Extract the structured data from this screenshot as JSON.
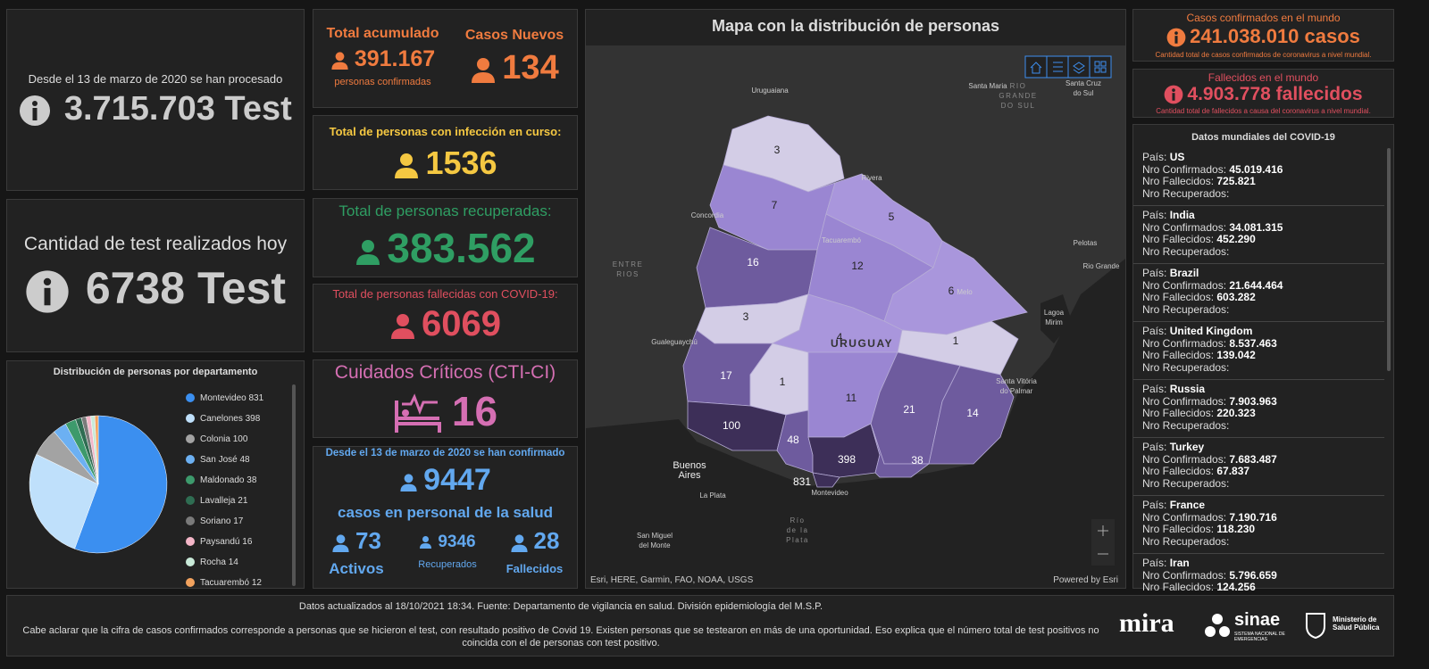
{
  "tests_total": {
    "label": "Desde el 13 de marzo de 2020 se han procesado",
    "value": "3.715.703 Test"
  },
  "tests_today": {
    "label": "Cantidad de test realizados hoy",
    "value": "6738 Test"
  },
  "department_chart": {
    "title": "Distribución de personas por departamento",
    "categories": [
      "Montevideo",
      "Canelones",
      "Colonia",
      "San José",
      "Maldonado",
      "Lavalleja",
      "Soriano",
      "Paysandú",
      "Rocha",
      "Tacuarembó"
    ],
    "values": [
      831,
      398,
      100,
      48,
      38,
      21,
      17,
      16,
      14,
      12
    ],
    "colors": [
      "#3b8ff0",
      "#bfe0fb",
      "#a3a3a3",
      "#6cb0f2",
      "#3d9a6c",
      "#2f6d52",
      "#7a7a7a",
      "#f4b6c8",
      "#c9ead9",
      "#f2a25e"
    ]
  },
  "total_cumulative": {
    "label": "Total acumulado",
    "value": "391.167",
    "sublabel": "personas confirmadas"
  },
  "new_cases": {
    "label": "Casos Nuevos",
    "value": "134"
  },
  "active": {
    "label": "Total de personas con infección en curso:",
    "value": "1536"
  },
  "recovered": {
    "label": "Total de personas recuperadas:",
    "value": "383.562"
  },
  "deceased": {
    "label": "Total de personas fallecidas con COVID-19:",
    "value": "6069"
  },
  "critical": {
    "label": "Cuidados Críticos (CTI-CI)",
    "value": "16"
  },
  "health_staff": {
    "label": "Desde el 13 de marzo de 2020 se han confirmado",
    "value": "9447",
    "sublabel": "casos en personal de la salud",
    "active": {
      "value": "73",
      "label": "Activos"
    },
    "recovered": {
      "value": "9346",
      "label": "Recuperados"
    },
    "deceased": {
      "value": "28",
      "label": "Fallecidos"
    }
  },
  "map": {
    "title": "Mapa con la distribución de personas",
    "departments": [
      3,
      7,
      5,
      16,
      12,
      6,
      3,
      4,
      1,
      17,
      1,
      11,
      21,
      14,
      100,
      48,
      398,
      38,
      831
    ],
    "places": [
      [
        "Uruguaiana"
      ],
      [
        "Santa Maria"
      ],
      [
        "Santa Cruz",
        "do Sul"
      ],
      [
        "RIO",
        "GRANDE",
        "DO SUL"
      ],
      [
        "Concordia"
      ],
      [
        "Rivera"
      ],
      [
        "Tacuarembó"
      ],
      [
        "ENTRE",
        "RIOS"
      ],
      [
        "Melo"
      ],
      [
        "Pelotas"
      ],
      [
        "Rio Grande"
      ],
      [
        "Lagoa",
        "Mirim"
      ],
      [
        "URUGUAY"
      ],
      [
        "Gualeguaychú"
      ],
      [
        "Santa Vitória",
        "do Palmar"
      ],
      [
        "Buenos",
        "Aires"
      ],
      [
        "La Plata"
      ],
      [
        "Montevideo"
      ],
      [
        "San Miguel",
        "del Monte"
      ],
      [
        "Río",
        "de la",
        "Plata"
      ]
    ],
    "attribution": "Esri, HERE, Garmin, FAO, NOAA, USGS",
    "powered_by": "Powered by Esri"
  },
  "world_cases": {
    "label": "Casos confirmados en el mundo",
    "value": "241.038.010 casos",
    "note": "Cantidad total de casos confirmados de coronavirus a nivel mundial."
  },
  "world_deaths": {
    "label": "Fallecidos en el mundo",
    "value": "4.903.778 fallecidos",
    "note": "Cantidad total de fallecidos a causa del coronavirus a nivel mundial."
  },
  "world_list": {
    "title": "Datos mundiales del COVID-19",
    "field_labels": {
      "country": "País:",
      "confirmed": "Nro Confirmados:",
      "deaths": "Nro Fallecidos:",
      "recovered": "Nro Recuperados:"
    },
    "countries": [
      {
        "name": "US",
        "confirmed": "45.019.416",
        "deaths": "725.821"
      },
      {
        "name": "India",
        "confirmed": "34.081.315",
        "deaths": "452.290"
      },
      {
        "name": "Brazil",
        "confirmed": "21.644.464",
        "deaths": "603.282"
      },
      {
        "name": "United Kingdom",
        "confirmed": "8.537.463",
        "deaths": "139.042"
      },
      {
        "name": "Russia",
        "confirmed": "7.903.963",
        "deaths": "220.323"
      },
      {
        "name": "Turkey",
        "confirmed": "7.683.487",
        "deaths": "67.837"
      },
      {
        "name": "France",
        "confirmed": "7.190.716",
        "deaths": "118.230"
      },
      {
        "name": "Iran",
        "confirmed": "5.796.659",
        "deaths": "124.256"
      }
    ]
  },
  "footer": {
    "update": "Datos actualizados al 18/10/2021 18:34. Fuente: Departamento de vigilancia en salud. División epidemiología del M.S.P.",
    "note": "Cabe aclarar que la cifra de casos confirmados corresponde a personas que se hicieron el test, con resultado positivo de Covid 19. Existen personas que se testearon en más de una oportunidad. Eso explica que el número total de test positivos no coincida con el de personas con test positivo."
  },
  "logos": {
    "mira": "mira",
    "sinae": "sinae",
    "sinae_sub": "SISTEMA NACIONAL DE EMERGENCIAS",
    "msp": "Ministerio de Salud Pública"
  }
}
